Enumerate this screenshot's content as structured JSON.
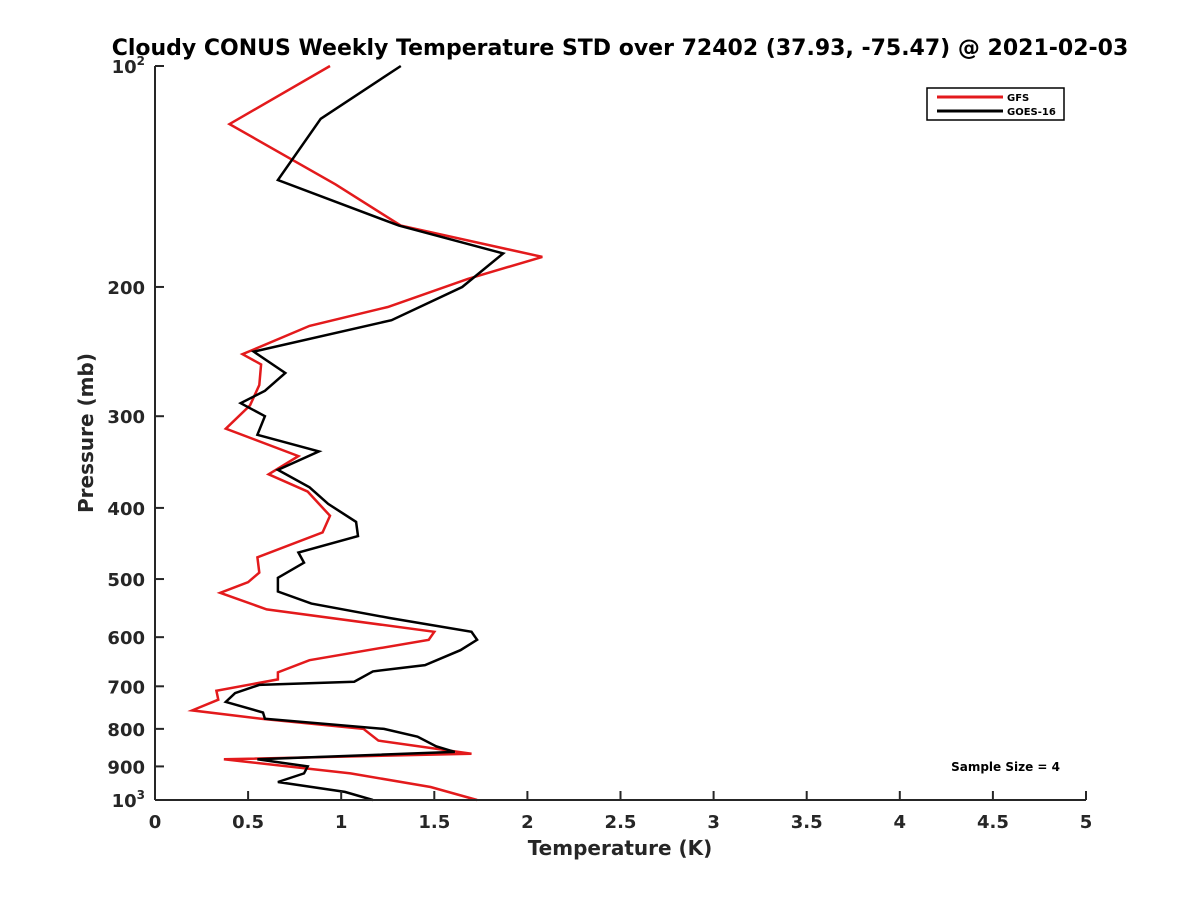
{
  "chart_data": {
    "type": "line",
    "title": "Cloudy CONUS Weekly Temperature STD over 72402 (37.93, -75.47) @ 2021-02-03",
    "xlabel": "Temperature (K)",
    "ylabel": "Pressure (mb)",
    "xlim": [
      0,
      5
    ],
    "ylim": [
      100,
      1000
    ],
    "y_scale": "log",
    "y_reversed": true,
    "grid": false,
    "legend_position": "top-right",
    "x_ticks": [
      "0",
      "0.5",
      "1",
      "1.5",
      "2",
      "2.5",
      "3",
      "3.5",
      "4",
      "4.5",
      "5"
    ],
    "y_ticks": [
      {
        "value": 100,
        "base": "10",
        "exp": "2"
      },
      {
        "value": 200,
        "label": "200"
      },
      {
        "value": 300,
        "label": "300"
      },
      {
        "value": 400,
        "label": "400"
      },
      {
        "value": 500,
        "label": "500"
      },
      {
        "value": 600,
        "label": "600"
      },
      {
        "value": 700,
        "label": "700"
      },
      {
        "value": 800,
        "label": "800"
      },
      {
        "value": 900,
        "label": "900"
      },
      {
        "value": 1000,
        "base": "10",
        "exp": "3"
      }
    ],
    "series": [
      {
        "name": "GFS",
        "color": "#e31a1c",
        "x": [
          0.94,
          0.4,
          0.97,
          1.32,
          2.08,
          1.68,
          1.25,
          0.83,
          0.47,
          0.57,
          0.56,
          0.51,
          0.38,
          0.77,
          0.61,
          0.82,
          0.94,
          0.9,
          0.55,
          0.56,
          0.5,
          0.35,
          0.6,
          1.5,
          1.47,
          0.83,
          0.66,
          0.66,
          0.33,
          0.34,
          0.2,
          0.57,
          1.12,
          1.2,
          1.7,
          0.37,
          1.05,
          1.48,
          1.73
        ],
        "y": [
          100,
          120,
          145,
          165,
          182,
          195,
          213,
          226,
          247,
          255,
          272,
          290,
          312,
          340,
          360,
          380,
          410,
          432,
          467,
          490,
          505,
          522,
          550,
          590,
          605,
          645,
          670,
          685,
          710,
          730,
          755,
          775,
          800,
          830,
          865,
          880,
          920,
          960,
          1000
        ]
      },
      {
        "name": "GOES-16",
        "color": "#000000",
        "x": [
          1.32,
          0.89,
          0.66,
          1.31,
          1.87,
          1.65,
          1.27,
          0.53,
          0.7,
          0.59,
          0.46,
          0.59,
          0.55,
          0.88,
          0.66,
          0.83,
          0.93,
          1.08,
          1.09,
          0.77,
          0.8,
          0.66,
          0.66,
          0.84,
          1.26,
          1.7,
          1.73,
          1.64,
          1.45,
          1.17,
          1.07,
          0.56,
          0.43,
          0.38,
          0.58,
          0.59,
          1.23,
          1.41,
          1.51,
          1.61,
          0.55,
          0.82,
          0.8,
          0.66,
          1.02,
          1.17
        ],
        "y": [
          100,
          118,
          143,
          165,
          180,
          200,
          222,
          245,
          262,
          277,
          288,
          300,
          318,
          335,
          355,
          375,
          395,
          418,
          437,
          460,
          475,
          498,
          520,
          540,
          565,
          590,
          605,
          625,
          655,
          668,
          690,
          697,
          715,
          735,
          760,
          775,
          800,
          820,
          845,
          860,
          880,
          900,
          920,
          945,
          975,
          1000
        ]
      }
    ],
    "annotations": [
      {
        "text": "Sample Size = 4"
      }
    ]
  }
}
